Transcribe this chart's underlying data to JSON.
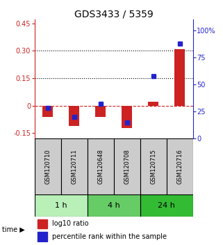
{
  "title": "GDS3433 / 5359",
  "samples": [
    "GSM120710",
    "GSM120711",
    "GSM120648",
    "GSM120708",
    "GSM120715",
    "GSM120716"
  ],
  "log10_ratio": [
    -0.062,
    -0.11,
    -0.062,
    -0.122,
    0.02,
    0.31
  ],
  "percentile_rank": [
    28,
    20,
    32,
    15,
    58,
    88
  ],
  "groups": [
    {
      "label": "1 h",
      "samples": [
        0,
        1
      ],
      "color": "#b8f0b8"
    },
    {
      "label": "4 h",
      "samples": [
        2,
        3
      ],
      "color": "#66cc66"
    },
    {
      "label": "24 h",
      "samples": [
        4,
        5
      ],
      "color": "#33bb33"
    }
  ],
  "bar_color": "#cc2222",
  "dot_color": "#2222cc",
  "ylim_left": [
    -0.18,
    0.47
  ],
  "ylim_right": [
    0,
    110
  ],
  "yticks_left": [
    -0.15,
    0.0,
    0.15,
    0.3,
    0.45
  ],
  "yticks_right": [
    0,
    25,
    50,
    75,
    100
  ],
  "ytick_labels_left": [
    "-0.15",
    "0",
    "0.15",
    "0.30",
    "0.45"
  ],
  "ytick_labels_right": [
    "0",
    "25",
    "50",
    "75",
    "100%"
  ],
  "hlines": [
    0.15,
    0.3
  ],
  "bar_width": 0.4,
  "dot_marker_size": 5,
  "time_label": "time",
  "legend_red": "log10 ratio",
  "legend_blue": "percentile rank within the sample",
  "background_color": "#ffffff",
  "sample_box_color": "#cccccc",
  "title_fontsize": 10,
  "tick_fontsize": 7,
  "sample_fontsize": 6,
  "legend_fontsize": 7,
  "group_fontsize": 8
}
